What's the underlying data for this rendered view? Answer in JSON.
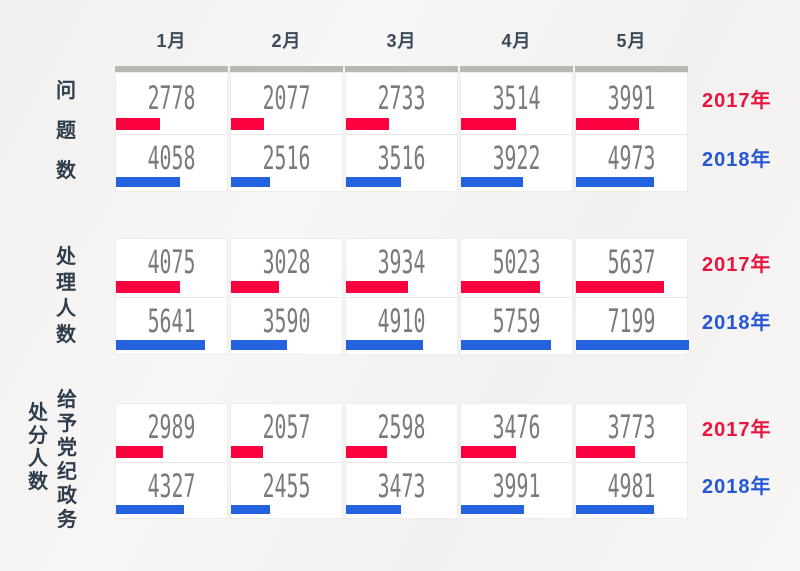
{
  "months": [
    "1月",
    "2月",
    "3月",
    "4月",
    "5月"
  ],
  "legend": {
    "year2017": "2017年",
    "year2018": "2018年"
  },
  "colors": {
    "bar_red": "#fb013f",
    "bar_blue": "#2562e0",
    "legend_red": "#e8143f",
    "legend_blue": "#2457d4",
    "gray_track": "#b8b8b3",
    "number_text": "#7a7a7a",
    "label_text": "#2e3d4c"
  },
  "sections_labels": [
    [
      "问题数"
    ],
    [
      "处理人数"
    ],
    [
      "处分人数",
      "给予党纪政务"
    ]
  ],
  "chart_data": [
    {
      "type": "bar",
      "title": "问题数",
      "categories": [
        "1月",
        "2月",
        "3月",
        "4月",
        "5月"
      ],
      "series": [
        {
          "name": "2017年",
          "color": "#fb013f",
          "values": [
            2778,
            2077,
            2733,
            3514,
            3991
          ]
        },
        {
          "name": "2018年",
          "color": "#2562e0",
          "values": [
            4058,
            2516,
            3516,
            3922,
            4973
          ]
        }
      ],
      "legend_position": "right",
      "grid": false,
      "value_axis_max": 7199
    },
    {
      "type": "bar",
      "title": "处理人数",
      "categories": [
        "1月",
        "2月",
        "3月",
        "4月",
        "5月"
      ],
      "series": [
        {
          "name": "2017年",
          "color": "#fb013f",
          "values": [
            4075,
            3028,
            3934,
            5023,
            5637
          ]
        },
        {
          "name": "2018年",
          "color": "#2562e0",
          "values": [
            5641,
            3590,
            4910,
            5759,
            7199
          ]
        }
      ],
      "legend_position": "right",
      "grid": false,
      "value_axis_max": 7199
    },
    {
      "type": "bar",
      "title": "处分人数（给予党纪政务）",
      "categories": [
        "1月",
        "2月",
        "3月",
        "4月",
        "5月"
      ],
      "series": [
        {
          "name": "2017年",
          "color": "#fb013f",
          "values": [
            2989,
            2057,
            2598,
            3476,
            3773
          ]
        },
        {
          "name": "2018年",
          "color": "#2562e0",
          "values": [
            4327,
            2455,
            3473,
            3991,
            4981
          ]
        }
      ],
      "legend_position": "right",
      "grid": false,
      "value_axis_max": 7199
    }
  ]
}
